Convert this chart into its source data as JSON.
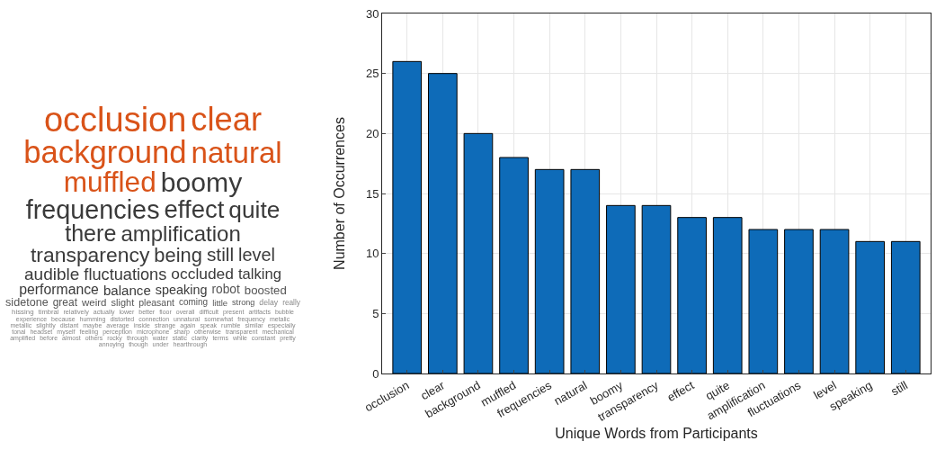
{
  "chart_data": [
    {
      "type": "other",
      "annotations": [
        "occlusion",
        "clear",
        "background",
        "natural",
        "muffled",
        "boomy",
        "frequencies",
        "effect",
        "quite",
        "there",
        "amplification",
        "transparency",
        "being",
        "still",
        "level",
        "audible",
        "fluctuations",
        "occluded",
        "talking",
        "performance",
        "balance",
        "speaking",
        "robot",
        "boosted",
        "sidetone",
        "great",
        "weird",
        "slight",
        "pleasant",
        "coming",
        "little",
        "strong",
        "delay",
        "really",
        "hissing",
        "timbral",
        "relatively",
        "actually",
        "lower",
        "better",
        "floor",
        "overall",
        "difficult",
        "present",
        "artifacts",
        "bubble",
        "experience",
        "because",
        "humming",
        "distorted",
        "connection",
        "unnatural",
        "somewhat",
        "frequency",
        "metalic",
        "metallic",
        "slightly",
        "distant",
        "maybe",
        "average",
        "inside",
        "strange",
        "again",
        "speak",
        "rumble",
        "similar",
        "especially",
        "tonal",
        "headset",
        "myself",
        "feeling",
        "perception",
        "microphone",
        "sharp",
        "otherwise",
        "transparent",
        "mechanical",
        "amplified",
        "before",
        "almost",
        "others",
        "rocky",
        "through",
        "water",
        "static",
        "clarity",
        "terms",
        "while",
        "constant",
        "pretty",
        "annoying",
        "though",
        "under",
        "hearthrough"
      ],
      "colors": [
        "#d95319",
        "#d95319",
        "#d95319",
        "#d95319",
        "#d95319"
      ]
    },
    {
      "type": "bar",
      "categories": [
        "occlusion",
        "clear",
        "background",
        "muffled",
        "frequencies",
        "natural",
        "boomy",
        "transparency",
        "effect",
        "quite",
        "amplification",
        "fluctuations",
        "level",
        "speaking",
        "still"
      ],
      "values": [
        26,
        25,
        20,
        18,
        17,
        17,
        14,
        14,
        13,
        13,
        12,
        12,
        12,
        11,
        11
      ],
      "color": "#0e6bb8",
      "xlabel": "Unique Words from Participants",
      "ylabel": "Number of Occurrences",
      "ylim": [
        0,
        30
      ],
      "yticks": [
        0,
        5,
        10,
        15,
        20,
        25,
        30
      ],
      "grid": true
    }
  ]
}
